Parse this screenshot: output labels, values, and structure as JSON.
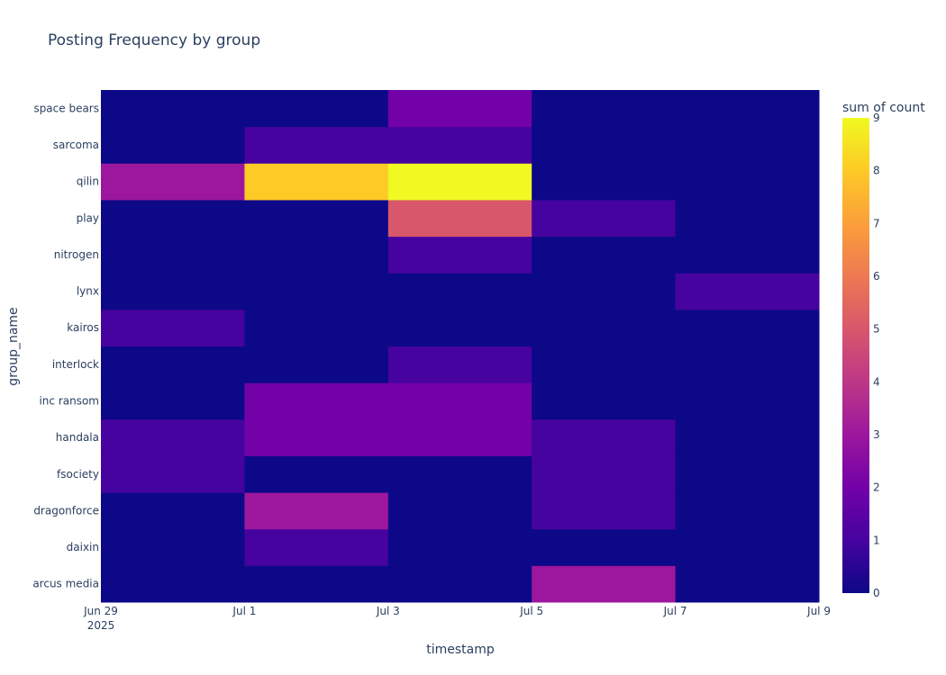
{
  "chart_data": {
    "type": "heatmap",
    "title": "Posting Frequency by group",
    "xlabel": "timestamp",
    "ylabel": "group_name",
    "x_bins": [
      "2025-06-29",
      "2025-07-01",
      "2025-07-03",
      "2025-07-05",
      "2025-07-07",
      "2025-07-09"
    ],
    "x_tick_labels": [
      "Jun 29\n2025",
      "Jul 1",
      "Jul 3",
      "Jul 5",
      "Jul 7",
      "Jul 9"
    ],
    "groups": [
      "arcus media",
      "daixin",
      "dragonforce",
      "fsociety",
      "handala",
      "inc ransom",
      "interlock",
      "kairos",
      "lynx",
      "nitrogen",
      "play",
      "qilin",
      "sarcoma",
      "space bears"
    ],
    "values": [
      [
        0,
        0,
        0,
        3,
        0
      ],
      [
        0,
        1,
        0,
        0,
        0
      ],
      [
        0,
        3,
        0,
        1,
        0
      ],
      [
        1,
        0,
        0,
        1,
        0
      ],
      [
        1,
        2,
        2,
        1,
        0
      ],
      [
        0,
        2,
        2,
        0,
        0
      ],
      [
        0,
        0,
        1,
        0,
        0
      ],
      [
        1,
        0,
        0,
        0,
        0
      ],
      [
        0,
        0,
        0,
        0,
        1
      ],
      [
        0,
        0,
        1,
        0,
        0
      ],
      [
        0,
        0,
        5,
        1,
        0
      ],
      [
        3,
        8,
        9,
        0,
        0
      ],
      [
        0,
        1,
        1,
        0,
        0
      ],
      [
        0,
        0,
        2,
        0,
        0
      ]
    ],
    "colorbar": {
      "title": "sum of count",
      "range": [
        0,
        9
      ],
      "ticks": [
        0,
        1,
        2,
        3,
        4,
        5,
        6,
        7,
        8,
        9
      ],
      "colorscale": [
        "#0d0887",
        "#46039f",
        "#7201a8",
        "#9c179e",
        "#bd3786",
        "#d8576b",
        "#ed7953",
        "#fb9f3a",
        "#fdca26",
        "#f0f921"
      ]
    },
    "grid": false
  }
}
